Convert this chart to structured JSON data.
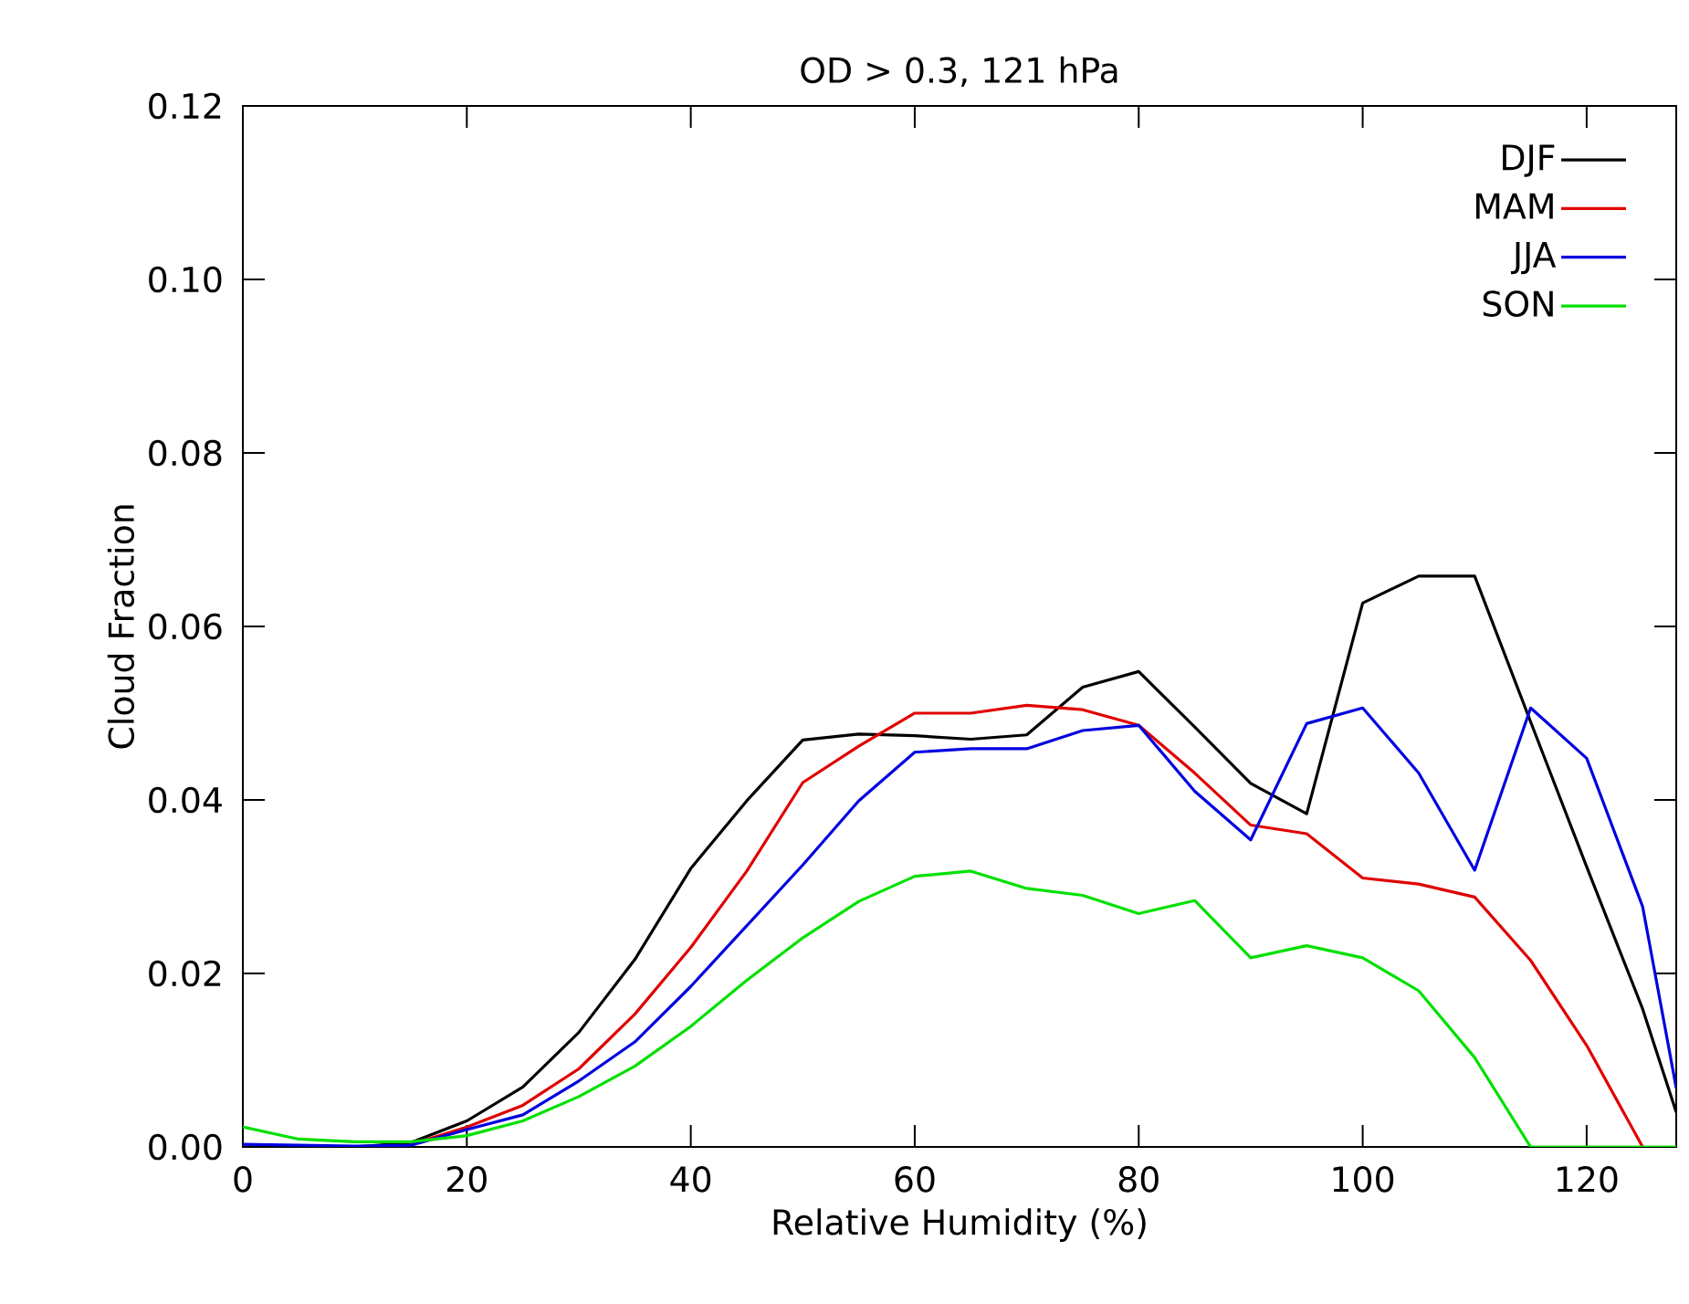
{
  "chart_data": {
    "type": "line",
    "title": "OD > 0.3, 121 hPa",
    "xlabel": "Relative Humidity (%)",
    "ylabel": "Cloud Fraction",
    "xlim": [
      0,
      128
    ],
    "ylim": [
      0,
      0.12
    ],
    "xticks": [
      0,
      20,
      40,
      60,
      80,
      100,
      120
    ],
    "yticks": [
      {
        "value": 0,
        "label": "0.00"
      },
      {
        "value": 0.02,
        "label": "0.02"
      },
      {
        "value": 0.04,
        "label": "0.04"
      },
      {
        "value": 0.06,
        "label": "0.06"
      },
      {
        "value": 0.08,
        "label": "0.08"
      },
      {
        "value": 0.1,
        "label": "0.10"
      },
      {
        "value": 0.12,
        "label": "0.12"
      }
    ],
    "legend": "top right",
    "marker": "none",
    "line_style": "solid",
    "x": [
      0,
      5,
      10,
      15,
      20,
      25,
      30,
      35,
      40,
      45,
      50,
      55,
      60,
      65,
      70,
      75,
      80,
      85,
      90,
      95,
      100,
      105,
      110,
      115,
      120,
      125,
      128
    ],
    "series": [
      {
        "name": "DJF",
        "color": "#000000",
        "values": [
          0,
          0,
          0,
          0.0005,
          0.003,
          0.0069,
          0.0132,
          0.0216,
          0.0321,
          0.0399,
          0.0469,
          0.0476,
          0.0474,
          0.047,
          0.0475,
          0.053,
          0.0548,
          0.0484,
          0.0419,
          0.0384,
          0.0627,
          0.0658,
          0.0658,
          0.049,
          0.0323,
          0.0159,
          0.004
        ]
      },
      {
        "name": "MAM",
        "color": "#e00000",
        "values": [
          null,
          null,
          null,
          0.0003,
          0.0023,
          0.0048,
          0.009,
          0.0153,
          0.023,
          0.0318,
          0.042,
          0.0462,
          0.05,
          0.05,
          0.0509,
          0.0504,
          0.0486,
          0.0431,
          0.0371,
          0.0361,
          0.031,
          0.0303,
          0.0288,
          0.0215,
          0.0117,
          0,
          null
        ]
      },
      {
        "name": "JJA",
        "color": "#0000e0",
        "values": [
          0.0003,
          0.0002,
          0.0001,
          0.0002,
          0.002,
          0.0037,
          0.0076,
          0.0121,
          0.0185,
          0.0255,
          0.0325,
          0.0399,
          0.0455,
          0.0459,
          0.0459,
          0.048,
          0.0486,
          0.041,
          0.0354,
          0.0488,
          0.0506,
          0.0431,
          0.0319,
          0.0506,
          0.0448,
          0.0277,
          0.0068
        ]
      },
      {
        "name": "SON",
        "color": "#00e000",
        "values": [
          0.0023,
          0.0009,
          0.0006,
          0.0006,
          0.0013,
          0.003,
          0.0058,
          0.0093,
          0.0139,
          0.0192,
          0.0241,
          0.0283,
          0.0312,
          0.0318,
          0.0298,
          0.029,
          0.0269,
          0.0284,
          0.0218,
          0.0232,
          0.0218,
          0.018,
          0.0103,
          0,
          0,
          0,
          0
        ]
      }
    ]
  }
}
